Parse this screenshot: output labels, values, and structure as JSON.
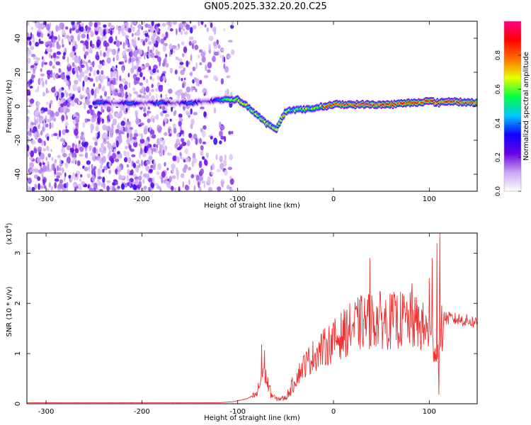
{
  "title": "GN05.2025.332.20.20.C25",
  "chart_data": [
    {
      "type": "heatmap",
      "name": "spectrogram",
      "xlabel": "Height of straight line (km)",
      "ylabel": "Frequency (Hz)",
      "xlim": [
        -320,
        150
      ],
      "ylim": [
        -50,
        50
      ],
      "xticks": [
        -300,
        -200,
        -100,
        0,
        100
      ],
      "xtick_labels": [
        "-300",
        "-200",
        "-100",
        "0",
        "100"
      ],
      "yticks": [
        -40,
        -20,
        0,
        20,
        40
      ],
      "ytick_labels": [
        "-40",
        "-20",
        "0",
        "20",
        "40"
      ],
      "noise_region_km": [
        -320,
        -105
      ],
      "ridge": {
        "x": [
          -250,
          -200,
          -150,
          -115,
          -100,
          -90,
          -80,
          -70,
          -60,
          -50,
          -45,
          -30,
          -10,
          0,
          20,
          40,
          60,
          80,
          100,
          110,
          120,
          150
        ],
        "y": [
          2,
          2,
          2,
          4,
          4,
          0,
          -5,
          -10,
          -14,
          -3,
          -2,
          -2,
          0,
          1,
          1,
          1,
          1,
          2,
          3,
          2,
          3,
          2
        ],
        "peak_amplitude": 0.95
      },
      "colorbar": {
        "label": "Normalized spectral amplitude",
        "range": [
          0,
          1
        ],
        "ticks": [
          0.0,
          0.2,
          0.4,
          0.6,
          0.8
        ],
        "tick_labels": [
          "0.0",
          "0.2",
          "0.4",
          "0.6",
          "0.8"
        ],
        "colors": [
          "#ffffff",
          "#c9a6f0",
          "#6a00e8",
          "#1000ff",
          "#00c8ff",
          "#00ff40",
          "#e8ff00",
          "#ff7000",
          "#ff0000",
          "#ff0088"
        ]
      }
    },
    {
      "type": "line",
      "name": "snr",
      "xlabel": "Height of straight line (km)",
      "ylabel": "SNR (10 * v/v)",
      "y_multiplier_base": "(x10",
      "y_multiplier_exp": "4",
      "y_multiplier_close": ")",
      "xlim": [
        -320,
        150
      ],
      "ylim": [
        0,
        3.4
      ],
      "xticks": [
        -300,
        -200,
        -100,
        0,
        100
      ],
      "xtick_labels": [
        "-300",
        "-200",
        "-100",
        "0",
        "100"
      ],
      "yticks": [
        0,
        1,
        2,
        3
      ],
      "ytick_labels": [
        "0",
        "1",
        "2",
        "3"
      ],
      "color": "#ee3333",
      "envelope": {
        "x": [
          -320,
          -120,
          -105,
          -100,
          -90,
          -80,
          -75,
          -72,
          -70,
          -65,
          -60,
          -50,
          -45,
          -40,
          -35,
          -30,
          -20,
          -10,
          0,
          10,
          20,
          30,
          40,
          50,
          60,
          70,
          80,
          90,
          100,
          105,
          108,
          110,
          112,
          115,
          120,
          130,
          150
        ],
        "y": [
          0.02,
          0.02,
          0.04,
          0.06,
          0.1,
          0.2,
          0.55,
          0.8,
          0.5,
          0.2,
          0.1,
          0.12,
          0.3,
          0.5,
          0.7,
          0.85,
          1.05,
          1.2,
          1.35,
          1.5,
          1.65,
          1.75,
          1.8,
          1.8,
          1.78,
          1.8,
          1.78,
          1.7,
          1.5,
          1.3,
          1.0,
          1.2,
          1.5,
          1.72,
          1.7,
          1.68,
          1.62
        ]
      },
      "spikes": [
        {
          "x": -75,
          "y": 1.18
        },
        {
          "x": 38,
          "y": 2.9
        },
        {
          "x": 65,
          "y": 2.05
        },
        {
          "x": 82,
          "y": 2.4
        },
        {
          "x": 100,
          "y": 2.5
        },
        {
          "x": 103,
          "y": 2.9
        },
        {
          "x": 108,
          "y": 3.2
        },
        {
          "x": 111,
          "y": 3.4
        },
        {
          "x": 110,
          "y": 0.18
        }
      ]
    }
  ]
}
